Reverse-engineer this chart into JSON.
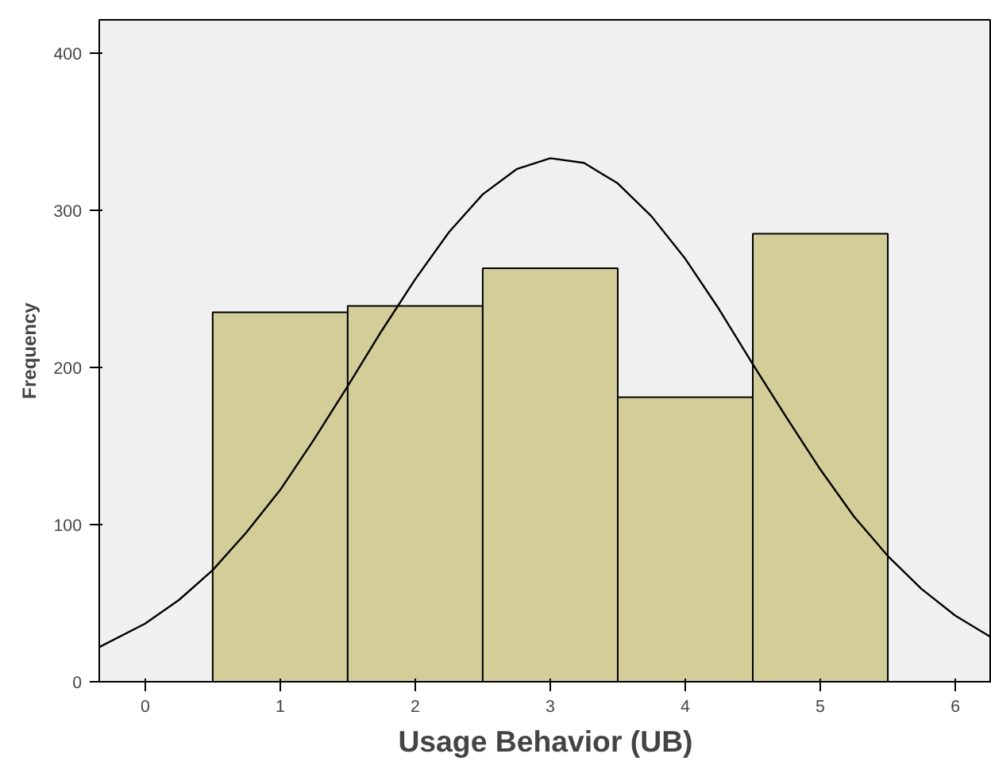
{
  "chart_data": {
    "type": "histogram",
    "xlabel": "Usage Behavior (UB)",
    "ylabel": "Frequency",
    "color": "#d3ce97",
    "bins": [
      0.5,
      1.5,
      2.5,
      3.5,
      4.5,
      5.5
    ],
    "values": [
      235,
      239,
      263,
      181,
      285
    ],
    "series": [
      {
        "type": "line",
        "color": "#000000",
        "x": [
          -0.34,
          0,
          0.25,
          0.5,
          0.75,
          1,
          1.25,
          1.5,
          1.75,
          2,
          2.25,
          2.5,
          2.75,
          3,
          3.25,
          3.5,
          3.75,
          4,
          4.25,
          4.5,
          4.75,
          5,
          5.25,
          5.5,
          5.75,
          6,
          6.27
        ],
        "values": [
          22,
          37,
          52,
          71,
          95,
          122,
          154,
          188,
          223,
          256,
          286,
          310,
          326,
          333,
          330,
          317,
          296,
          269,
          237,
          202,
          168,
          135,
          105,
          80,
          59,
          42,
          28
        ]
      }
    ],
    "xlim": [
      -0.34,
      6.27
    ],
    "ylim": [
      0,
      421
    ],
    "xticks": [
      0,
      1,
      2,
      3,
      4,
      5,
      6
    ],
    "yticks": [
      0,
      100,
      200,
      300,
      400
    ],
    "grid": false
  }
}
